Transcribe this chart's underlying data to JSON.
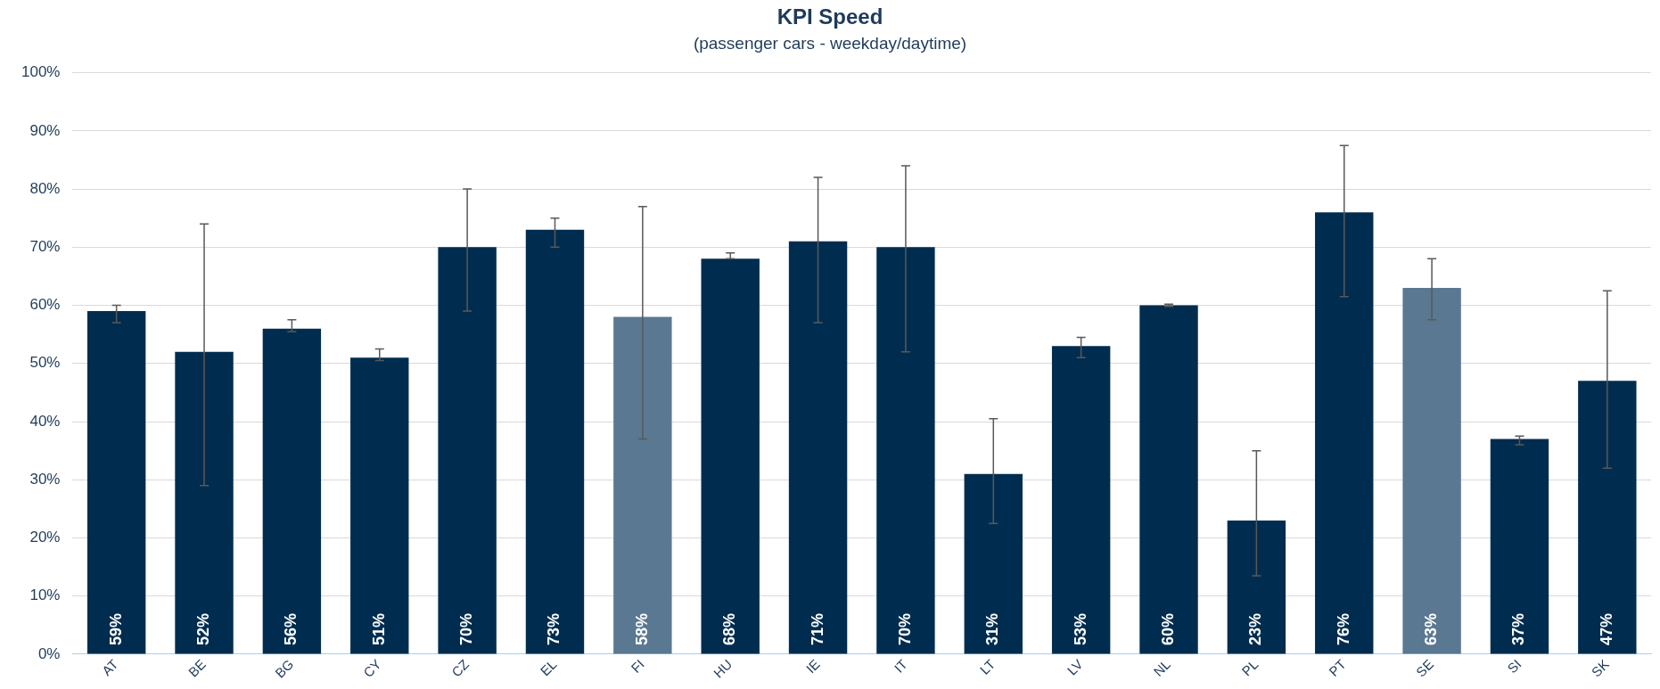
{
  "chart_data": {
    "type": "bar",
    "title": "KPI Speed",
    "subtitle": "(passenger cars - weekday/daytime)",
    "categories": [
      "AT",
      "BE",
      "BG",
      "CY",
      "CZ",
      "EL",
      "FI",
      "HU",
      "IE",
      "IT",
      "LT",
      "LV",
      "NL",
      "PL",
      "PT",
      "SE",
      "SI",
      "SK"
    ],
    "values": [
      59,
      52,
      56,
      51,
      70,
      73,
      58,
      68,
      71,
      70,
      31,
      53,
      60,
      23,
      76,
      63,
      37,
      47
    ],
    "colors": [
      "#002d4f",
      "#002d4f",
      "#002d4f",
      "#002d4f",
      "#002d4f",
      "#002d4f",
      "#5a7891",
      "#002d4f",
      "#002d4f",
      "#002d4f",
      "#002d4f",
      "#002d4f",
      "#002d4f",
      "#002d4f",
      "#002d4f",
      "#5a7891",
      "#002d4f",
      "#002d4f"
    ],
    "errors": [
      [
        57,
        60
      ],
      [
        29,
        74
      ],
      [
        55.5,
        57.5
      ],
      [
        50.5,
        52.5
      ],
      [
        59,
        80
      ],
      [
        70,
        75
      ],
      [
        37,
        77
      ],
      [
        68,
        69
      ],
      [
        57,
        82
      ],
      [
        52,
        84
      ],
      [
        22.5,
        40.5
      ],
      [
        51,
        54.5
      ],
      [
        59.8,
        60.2
      ],
      [
        13.5,
        35
      ],
      [
        61.5,
        87.5
      ],
      [
        57.5,
        68
      ],
      [
        36,
        37.5
      ],
      [
        32,
        62.5
      ]
    ],
    "ylim": [
      0,
      100
    ],
    "yticks": [
      {
        "value": 0,
        "label": "0%"
      },
      {
        "value": 10,
        "label": "10%"
      },
      {
        "value": 20,
        "label": "20%"
      },
      {
        "value": 30,
        "label": "30%"
      },
      {
        "value": 40,
        "label": "40%"
      },
      {
        "value": 50,
        "label": "50%"
      },
      {
        "value": 60,
        "label": "60%"
      },
      {
        "value": 70,
        "label": "70%"
      },
      {
        "value": 80,
        "label": "80%"
      },
      {
        "value": 90,
        "label": "90%"
      },
      {
        "value": 100,
        "label": "100%"
      }
    ],
    "value_labels": [
      "59%",
      "52%",
      "56%",
      "51%",
      "70%",
      "73%",
      "58%",
      "68%",
      "71%",
      "70%",
      "31%",
      "53%",
      "60%",
      "23%",
      "76%",
      "63%",
      "37%",
      "47%"
    ],
    "grid": "y"
  }
}
